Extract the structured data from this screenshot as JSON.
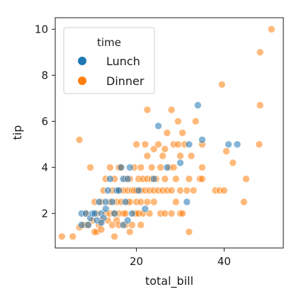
{
  "chart_data": {
    "type": "scatter",
    "xlabel": "total_bill",
    "ylabel": "tip",
    "xlim": [
      1.5,
      53.5
    ],
    "ylim": [
      0.5,
      10.5
    ],
    "x_ticks": [
      20,
      40
    ],
    "y_ticks": [
      2,
      4,
      6,
      8,
      10
    ],
    "grid": false,
    "legend": {
      "title": "time",
      "placement": "top-left",
      "entries": [
        {
          "label": "Lunch",
          "color": "#1f77b4"
        },
        {
          "label": "Dinner",
          "color": "#ff7f0e"
        }
      ]
    },
    "series": [
      {
        "name": "Lunch",
        "color": "#1f77b4",
        "points": [
          [
            7.5,
            2.0
          ],
          [
            8.5,
            2.0
          ],
          [
            9.5,
            1.8
          ],
          [
            10.0,
            2.0
          ],
          [
            10.5,
            2.0
          ],
          [
            11.0,
            1.7
          ],
          [
            11.5,
            2.5
          ],
          [
            12.0,
            2.0
          ],
          [
            12.5,
            1.8
          ],
          [
            13.0,
            2.2
          ],
          [
            13.0,
            2.5
          ],
          [
            13.5,
            3.0
          ],
          [
            14.0,
            3.5
          ],
          [
            14.5,
            2.5
          ],
          [
            15.0,
            2.0
          ],
          [
            15.5,
            3.0
          ],
          [
            16.0,
            3.0
          ],
          [
            16.5,
            4.0
          ],
          [
            17.0,
            3.5
          ],
          [
            17.0,
            1.5
          ],
          [
            17.5,
            2.5
          ],
          [
            18.0,
            3.5
          ],
          [
            18.5,
            4.0
          ],
          [
            19.0,
            2.0
          ],
          [
            20.5,
            3.0
          ],
          [
            22.0,
            2.2
          ],
          [
            24.0,
            3.5
          ],
          [
            25.0,
            5.8
          ],
          [
            27.0,
            4.0
          ],
          [
            30.0,
            4.2
          ],
          [
            32.0,
            5.0
          ],
          [
            34.0,
            6.7
          ],
          [
            35.0,
            5.2
          ],
          [
            41.0,
            5.0
          ],
          [
            43.0,
            5.0
          ],
          [
            31.5,
            2.5
          ],
          [
            18.0,
            1.7
          ],
          [
            12.0,
            1.6
          ],
          [
            9.0,
            1.5
          ],
          [
            7.5,
            1.5
          ]
        ]
      },
      {
        "name": "Dinner",
        "color": "#ff7f0e",
        "points": [
          [
            3.0,
            1.0
          ],
          [
            5.5,
            1.0
          ],
          [
            7.0,
            1.4
          ],
          [
            7.0,
            5.2
          ],
          [
            8.0,
            1.5
          ],
          [
            8.5,
            2.0
          ],
          [
            9.0,
            1.5
          ],
          [
            9.5,
            4.0
          ],
          [
            10.0,
            1.7
          ],
          [
            10.5,
            2.5
          ],
          [
            11.0,
            1.2
          ],
          [
            11.0,
            2.0
          ],
          [
            11.5,
            1.5
          ],
          [
            12.0,
            1.7
          ],
          [
            12.0,
            2.5
          ],
          [
            12.5,
            3.0
          ],
          [
            13.0,
            2.0
          ],
          [
            13.0,
            3.5
          ],
          [
            13.5,
            1.7
          ],
          [
            14.0,
            2.0
          ],
          [
            14.0,
            2.5
          ],
          [
            14.0,
            4.0
          ],
          [
            14.5,
            1.5
          ],
          [
            14.5,
            3.0
          ],
          [
            15.0,
            1.0
          ],
          [
            15.0,
            2.0
          ],
          [
            15.0,
            3.5
          ],
          [
            15.5,
            1.7
          ],
          [
            15.5,
            2.5
          ],
          [
            16.0,
            1.5
          ],
          [
            16.0,
            2.0
          ],
          [
            16.0,
            3.0
          ],
          [
            16.0,
            4.0
          ],
          [
            16.5,
            2.5
          ],
          [
            16.5,
            4.0
          ],
          [
            17.0,
            2.0
          ],
          [
            17.0,
            3.0
          ],
          [
            17.5,
            1.5
          ],
          [
            17.5,
            2.0
          ],
          [
            17.5,
            3.5
          ],
          [
            18.0,
            2.5
          ],
          [
            18.0,
            3.0
          ],
          [
            18.5,
            1.2
          ],
          [
            18.5,
            2.5
          ],
          [
            18.5,
            3.5
          ],
          [
            19.0,
            1.5
          ],
          [
            19.0,
            3.0
          ],
          [
            19.5,
            2.0
          ],
          [
            19.5,
            3.0
          ],
          [
            19.5,
            4.0
          ],
          [
            20.0,
            2.0
          ],
          [
            20.0,
            2.5
          ],
          [
            20.0,
            3.0
          ],
          [
            20.0,
            5.0
          ],
          [
            20.5,
            2.0
          ],
          [
            20.5,
            3.5
          ],
          [
            21.0,
            1.5
          ],
          [
            21.0,
            2.5
          ],
          [
            21.0,
            3.0
          ],
          [
            21.0,
            4.0
          ],
          [
            21.5,
            2.0
          ],
          [
            21.5,
            3.5
          ],
          [
            22.0,
            3.0
          ],
          [
            22.0,
            5.0
          ],
          [
            22.5,
            2.5
          ],
          [
            22.5,
            3.5
          ],
          [
            22.5,
            4.5
          ],
          [
            22.5,
            6.5
          ],
          [
            23.0,
            2.0
          ],
          [
            23.0,
            3.0
          ],
          [
            23.5,
            3.5
          ],
          [
            23.5,
            4.0
          ],
          [
            24.0,
            2.5
          ],
          [
            24.0,
            3.0
          ],
          [
            24.0,
            4.8
          ],
          [
            24.5,
            3.5
          ],
          [
            25.0,
            3.0
          ],
          [
            25.0,
            5.0
          ],
          [
            25.5,
            2.0
          ],
          [
            25.5,
            4.0
          ],
          [
            26.0,
            3.0
          ],
          [
            26.0,
            4.5
          ],
          [
            26.5,
            2.0
          ],
          [
            26.5,
            3.5
          ],
          [
            26.5,
            4.8
          ],
          [
            27.0,
            3.0
          ],
          [
            27.0,
            5.5
          ],
          [
            27.5,
            4.0
          ],
          [
            28.0,
            2.0
          ],
          [
            28.0,
            3.0
          ],
          [
            28.0,
            6.5
          ],
          [
            28.5,
            4.0
          ],
          [
            28.5,
            5.0
          ],
          [
            29.0,
            2.5
          ],
          [
            29.0,
            3.5
          ],
          [
            29.5,
            5.0
          ],
          [
            29.5,
            6.0
          ],
          [
            30.0,
            2.0
          ],
          [
            30.0,
            3.0
          ],
          [
            30.0,
            4.5
          ],
          [
            30.5,
            2.0
          ],
          [
            30.5,
            5.5
          ],
          [
            31.0,
            5.0
          ],
          [
            31.5,
            3.0
          ],
          [
            32.0,
            1.2
          ],
          [
            32.0,
            3.5
          ],
          [
            32.5,
            4.5
          ],
          [
            33.0,
            3.0
          ],
          [
            33.5,
            6.0
          ],
          [
            34.5,
            3.5
          ],
          [
            35.0,
            3.5
          ],
          [
            35.0,
            5.0
          ],
          [
            35.0,
            4.0
          ],
          [
            38.0,
            3.0
          ],
          [
            39.0,
            3.0
          ],
          [
            40.0,
            3.0
          ],
          [
            39.5,
            7.6
          ],
          [
            40.5,
            4.7
          ],
          [
            42.0,
            4.2
          ],
          [
            44.5,
            2.5
          ],
          [
            45.0,
            3.5
          ],
          [
            48.0,
            5.0
          ],
          [
            48.2,
            9.0
          ],
          [
            48.2,
            6.7
          ],
          [
            50.8,
            10.0
          ],
          [
            10.5,
            1.2
          ],
          [
            12.0,
            1.3
          ]
        ]
      }
    ]
  }
}
